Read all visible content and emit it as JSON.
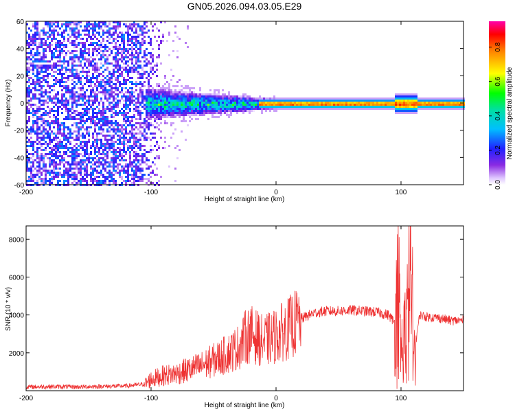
{
  "title": "GN05.2026.094.03.05.E29",
  "chart_data": [
    {
      "type": "heatmap",
      "xlabel": "Height of straight line (km)",
      "ylabel": "Frequency (Hz)",
      "xlim": [
        -200,
        150
      ],
      "ylim": [
        -60,
        60
      ],
      "xticks": [
        -200,
        -100,
        0,
        100
      ],
      "yticks": [
        -60,
        -40,
        -20,
        0,
        20,
        40,
        60
      ],
      "colorbar": {
        "label": "Normalized spectral amplitude",
        "range": [
          0.0,
          0.95
        ],
        "ticks": [
          0.0,
          0.2,
          0.4,
          0.6,
          0.8
        ]
      },
      "features": [
        {
          "region": "broadband noise",
          "x_range": [
            -200,
            -90
          ],
          "freq_range": [
            -60,
            60
          ],
          "amplitude": 0.15
        },
        {
          "region": "spreading band",
          "x_range": [
            -105,
            -10
          ],
          "freq_range": [
            -12,
            12
          ],
          "amplitude": 0.45
        },
        {
          "region": "narrow line near 0 Hz",
          "x_range": [
            -10,
            150
          ],
          "freq_range": [
            -3,
            3
          ],
          "amplitude": 0.9
        }
      ]
    },
    {
      "type": "line",
      "xlabel": "Height of straight line (km)",
      "ylabel": "SNR (10 * v/v)",
      "xlim": [
        -200,
        150
      ],
      "ylim": [
        0,
        8700
      ],
      "xticks": [
        -200,
        -100,
        0,
        100
      ],
      "yticks": [
        2000,
        4000,
        6000,
        8000
      ],
      "series": [
        {
          "name": "SNR",
          "color": "#ee3333",
          "x": [
            -200,
            -180,
            -160,
            -140,
            -120,
            -105,
            -100,
            -90,
            -80,
            -70,
            -60,
            -50,
            -40,
            -30,
            -25,
            -20,
            -10,
            0,
            10,
            20,
            30,
            40,
            50,
            60,
            70,
            80,
            90,
            95,
            98,
            100,
            105,
            108,
            110,
            115,
            120,
            130,
            140,
            150
          ],
          "y": [
            200,
            220,
            200,
            230,
            250,
            350,
            600,
            800,
            900,
            1100,
            1300,
            1600,
            1900,
            2300,
            2800,
            3000,
            2600,
            2900,
            3300,
            3800,
            4100,
            4200,
            4200,
            4250,
            4200,
            4150,
            4000,
            3600,
            5800,
            2000,
            3800,
            7500,
            1800,
            4000,
            3900,
            3850,
            3700,
            3700
          ]
        }
      ]
    }
  ]
}
